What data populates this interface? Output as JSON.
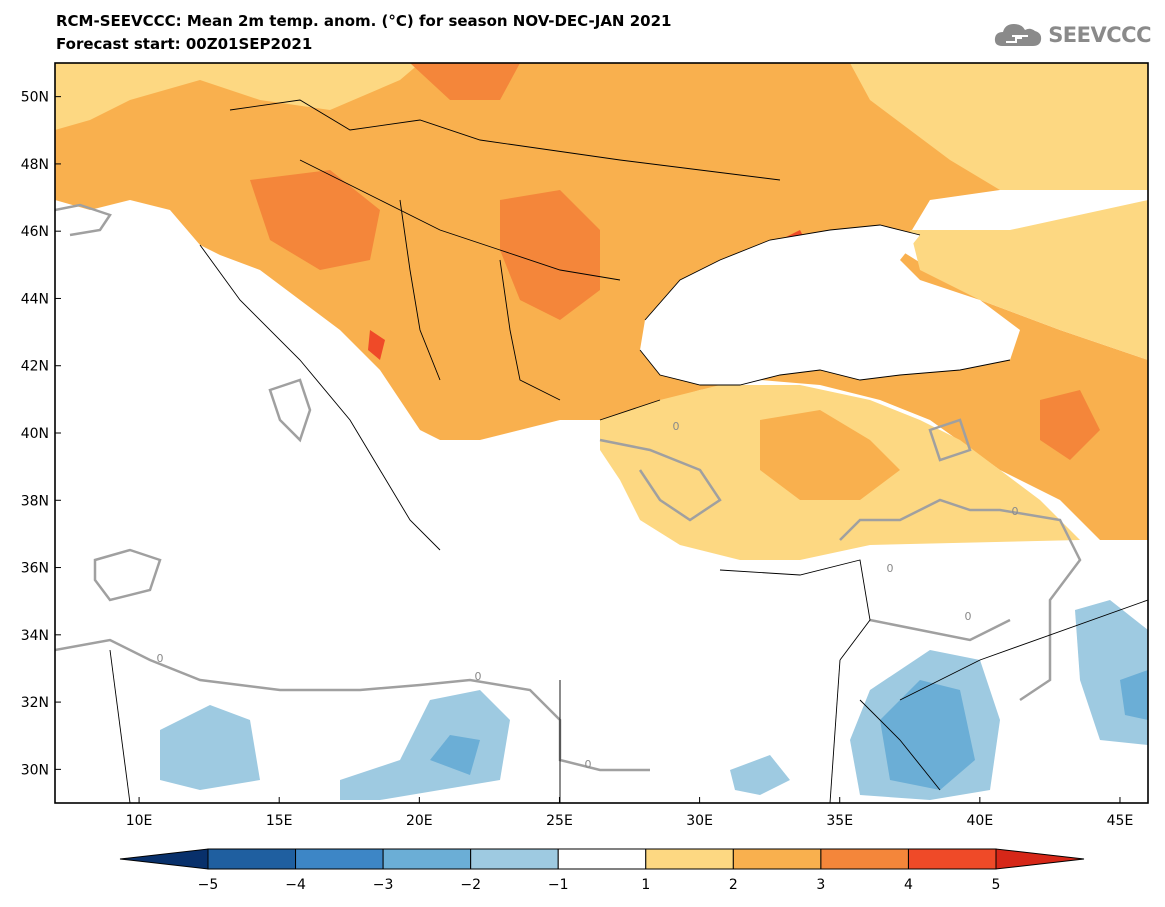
{
  "header": {
    "title": "RCM-SEEVCCC: Mean 2m temp. anom. (°C) for season NOV-DEC-JAN 2021",
    "subtitle": "Forecast start: 00Z01SEP2021",
    "logo_text": "SEEVCCC",
    "logo_icon": "cloud-icon"
  },
  "map": {
    "lon_range": [
      7,
      46
    ],
    "lat_range": [
      29,
      51
    ],
    "lat_labels": [
      {
        "lat": 50,
        "label": "50N"
      },
      {
        "lat": 48,
        "label": "48N"
      },
      {
        "lat": 46,
        "label": "46N"
      },
      {
        "lat": 44,
        "label": "44N"
      },
      {
        "lat": 42,
        "label": "42N"
      },
      {
        "lat": 40,
        "label": "40N"
      },
      {
        "lat": 38,
        "label": "38N"
      },
      {
        "lat": 36,
        "label": "36N"
      },
      {
        "lat": 34,
        "label": "34N"
      },
      {
        "lat": 32,
        "label": "32N"
      },
      {
        "lat": 30,
        "label": "30N"
      }
    ],
    "lon_labels": [
      {
        "lon": 10,
        "label": "10E"
      },
      {
        "lon": 15,
        "label": "15E"
      },
      {
        "lon": 20,
        "label": "20E"
      },
      {
        "lon": 25,
        "label": "25E"
      },
      {
        "lon": 30,
        "label": "30E"
      },
      {
        "lon": 35,
        "label": "35E"
      },
      {
        "lon": 40,
        "label": "40E"
      },
      {
        "lon": 45,
        "label": "45E"
      }
    ],
    "contour_label": "0"
  },
  "colorbar": {
    "labels": [
      "−5",
      "−4",
      "−3",
      "−2",
      "−1",
      "1",
      "2",
      "3",
      "4",
      "5"
    ],
    "colors": [
      "#08306b",
      "#1f5fa0",
      "#3d86c6",
      "#6baed6",
      "#9ecae1",
      "#ffffff",
      "#fdd882",
      "#f9b04e",
      "#f4863a",
      "#ef4a28",
      "#d62718"
    ]
  },
  "colors": {
    "anom_1_2": "#fdd882",
    "anom_2_3": "#f9b04e",
    "anom_3_4": "#f4863a",
    "anom_4_5": "#ef4a28",
    "anom_neg_1_2": "#9ecae1",
    "anom_neg_2_3": "#6baed6",
    "contour_zero": "#a0a0a0"
  }
}
